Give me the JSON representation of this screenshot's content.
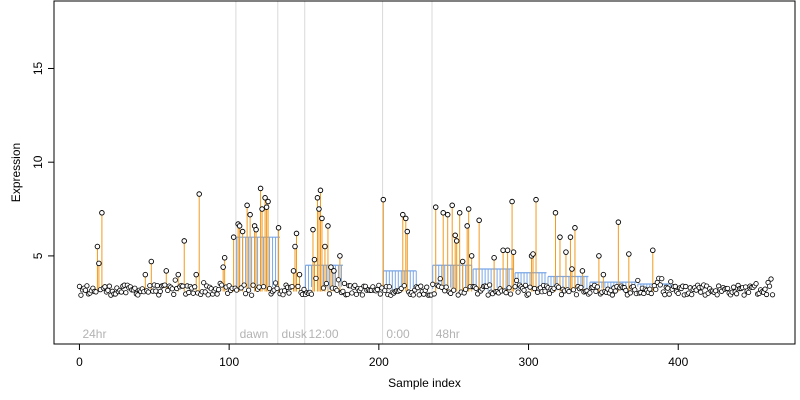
{
  "chart_data": {
    "type": "scatter",
    "title": "",
    "xlabel": "Sample index",
    "ylabel": "Expression",
    "xlim": [
      -17,
      478
    ],
    "ylim": [
      0.3,
      18.6
    ],
    "xticks": [
      0,
      100,
      200,
      300,
      400
    ],
    "yticks": [
      5,
      10,
      15
    ],
    "grid": false,
    "legend": "none",
    "colors": {
      "points": "#000000",
      "spike_lines": "#f29a1d",
      "baseline_bars": "#7aa7e6",
      "separators": "#d9d9d9",
      "segment_labels": "#b3b3b3"
    },
    "segments": [
      {
        "label": "24hr",
        "start": 0,
        "end": 104
      },
      {
        "label": "dawn",
        "start": 105,
        "end": 132
      },
      {
        "label": "dusk",
        "start": 133,
        "end": 150
      },
      {
        "label": "12:00",
        "start": 151,
        "end": 202
      },
      {
        "label": "0:00",
        "start": 203,
        "end": 235
      },
      {
        "label": "48hr",
        "start": 236,
        "end": 463
      }
    ],
    "spikes": [
      {
        "x": 12,
        "y": 5.5
      },
      {
        "x": 13,
        "y": 4.6
      },
      {
        "x": 15,
        "y": 7.3
      },
      {
        "x": 44,
        "y": 4.0
      },
      {
        "x": 48,
        "y": 4.7
      },
      {
        "x": 58,
        "y": 4.2
      },
      {
        "x": 66,
        "y": 4.0
      },
      {
        "x": 70,
        "y": 5.8
      },
      {
        "x": 78,
        "y": 4.0
      },
      {
        "x": 80,
        "y": 8.3
      },
      {
        "x": 96,
        "y": 4.4
      },
      {
        "x": 97,
        "y": 4.9
      },
      {
        "x": 103,
        "y": 6.0
      },
      {
        "x": 106,
        "y": 6.7
      },
      {
        "x": 107,
        "y": 6.6
      },
      {
        "x": 109,
        "y": 6.3
      },
      {
        "x": 112,
        "y": 7.7
      },
      {
        "x": 114,
        "y": 7.2
      },
      {
        "x": 117,
        "y": 6.6
      },
      {
        "x": 118,
        "y": 6.4
      },
      {
        "x": 121,
        "y": 8.6
      },
      {
        "x": 122,
        "y": 7.5
      },
      {
        "x": 124,
        "y": 8.1
      },
      {
        "x": 125,
        "y": 7.6
      },
      {
        "x": 126,
        "y": 7.9
      },
      {
        "x": 133,
        "y": 6.5
      },
      {
        "x": 143,
        "y": 4.2
      },
      {
        "x": 144,
        "y": 5.5
      },
      {
        "x": 145,
        "y": 6.2
      },
      {
        "x": 147,
        "y": 4.0
      },
      {
        "x": 156,
        "y": 6.4
      },
      {
        "x": 157,
        "y": 4.8
      },
      {
        "x": 159,
        "y": 8.1
      },
      {
        "x": 160,
        "y": 7.5
      },
      {
        "x": 161,
        "y": 8.5
      },
      {
        "x": 162,
        "y": 7.0
      },
      {
        "x": 164,
        "y": 5.5
      },
      {
        "x": 166,
        "y": 6.6
      },
      {
        "x": 168,
        "y": 4.4
      },
      {
        "x": 170,
        "y": 4.2
      },
      {
        "x": 174,
        "y": 5.0
      },
      {
        "x": 203,
        "y": 8.0
      },
      {
        "x": 216,
        "y": 7.2
      },
      {
        "x": 218,
        "y": 7.0
      },
      {
        "x": 219,
        "y": 6.3
      },
      {
        "x": 238,
        "y": 7.6
      },
      {
        "x": 243,
        "y": 7.3
      },
      {
        "x": 246,
        "y": 7.2
      },
      {
        "x": 249,
        "y": 7.7
      },
      {
        "x": 251,
        "y": 6.1
      },
      {
        "x": 252,
        "y": 5.8
      },
      {
        "x": 254,
        "y": 7.3
      },
      {
        "x": 256,
        "y": 4.7
      },
      {
        "x": 259,
        "y": 6.6
      },
      {
        "x": 260,
        "y": 7.5
      },
      {
        "x": 262,
        "y": 5.0
      },
      {
        "x": 267,
        "y": 6.9
      },
      {
        "x": 277,
        "y": 4.9
      },
      {
        "x": 283,
        "y": 5.3
      },
      {
        "x": 286,
        "y": 5.3
      },
      {
        "x": 289,
        "y": 7.9
      },
      {
        "x": 290,
        "y": 5.2
      },
      {
        "x": 302,
        "y": 5.0
      },
      {
        "x": 303,
        "y": 5.1
      },
      {
        "x": 305,
        "y": 8.0
      },
      {
        "x": 318,
        "y": 7.3
      },
      {
        "x": 321,
        "y": 6.0
      },
      {
        "x": 325,
        "y": 5.2
      },
      {
        "x": 328,
        "y": 6.0
      },
      {
        "x": 329,
        "y": 4.3
      },
      {
        "x": 331,
        "y": 6.5
      },
      {
        "x": 336,
        "y": 4.2
      },
      {
        "x": 347,
        "y": 5.0
      },
      {
        "x": 350,
        "y": 4.0
      },
      {
        "x": 360,
        "y": 6.8
      },
      {
        "x": 367,
        "y": 5.1
      },
      {
        "x": 383,
        "y": 5.3
      }
    ],
    "baseline_blocks": [
      {
        "x_start": 105,
        "x_end": 134,
        "level": 6.0
      },
      {
        "x_start": 151,
        "x_end": 176,
        "level": 4.5
      },
      {
        "x_start": 203,
        "x_end": 225,
        "level": 4.2
      },
      {
        "x_start": 236,
        "x_end": 262,
        "level": 4.5
      },
      {
        "x_start": 263,
        "x_end": 290,
        "level": 4.3
      },
      {
        "x_start": 291,
        "x_end": 312,
        "level": 4.1
      },
      {
        "x_start": 313,
        "x_end": 340,
        "level": 3.9
      },
      {
        "x_start": 341,
        "x_end": 372,
        "level": 3.6
      },
      {
        "x_start": 373,
        "x_end": 395,
        "level": 3.5
      }
    ]
  }
}
